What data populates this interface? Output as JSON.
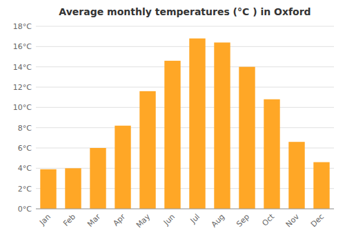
{
  "chart_data": {
    "type": "bar",
    "title": "Average monthly temperatures (°C ) in Oxford",
    "categories": [
      "Jan",
      "Feb",
      "Mar",
      "Apr",
      "May",
      "Jun",
      "Jul",
      "Aug",
      "Sep",
      "Oct",
      "Nov",
      "Dec"
    ],
    "values": [
      3.9,
      4.0,
      6.0,
      8.2,
      11.6,
      14.6,
      16.8,
      16.4,
      14.0,
      10.8,
      6.6,
      4.6
    ],
    "color": "#FFA726",
    "ylim": [
      0,
      18
    ],
    "yticks": [
      {
        "value": 0,
        "label": "0°C"
      },
      {
        "value": 2,
        "label": "2°C"
      },
      {
        "value": 4,
        "label": "4°C"
      },
      {
        "value": 6,
        "label": "6°C"
      },
      {
        "value": 8,
        "label": "8°C"
      },
      {
        "value": 10,
        "label": "10°C"
      },
      {
        "value": 12,
        "label": "12°C"
      },
      {
        "value": 14,
        "label": "14°C"
      },
      {
        "value": 16,
        "label": "16°C"
      },
      {
        "value": 18,
        "label": "18°C"
      }
    ],
    "grid": true
  }
}
